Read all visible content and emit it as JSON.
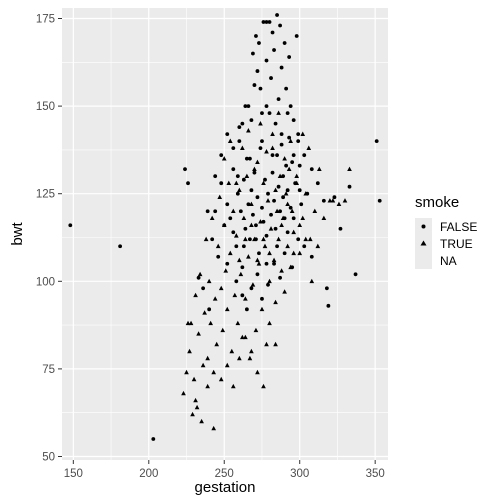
{
  "chart_data": {
    "type": "scatter",
    "title": "",
    "xlabel": "gestation",
    "ylabel": "bwt",
    "xlim": [
      142.5,
      358.5
    ],
    "ylim": [
      49,
      178
    ],
    "x_ticks": [
      150,
      200,
      250,
      300,
      350
    ],
    "y_ticks": [
      50,
      75,
      100,
      125,
      150,
      175
    ],
    "x_tick_labels": [
      "150",
      "200",
      "250",
      "300",
      "350"
    ],
    "y_tick_labels": [
      "50",
      "75",
      "100",
      "125",
      "150",
      "175"
    ],
    "grid": true,
    "panel_background": "#ebebeb",
    "grid_color": "#ffffff",
    "point_color": "#000000",
    "legend": {
      "title": "smoke",
      "position": "right",
      "entries": [
        {
          "label": "FALSE",
          "shape": "circle"
        },
        {
          "label": "TRUE",
          "shape": "triangle"
        },
        {
          "label": "NA",
          "shape": "none"
        }
      ]
    },
    "series": [
      {
        "name": "FALSE",
        "shape": "circle",
        "points": [
          [
            148,
            116
          ],
          [
            181,
            110
          ],
          [
            203,
            55
          ],
          [
            224,
            132
          ],
          [
            226,
            128
          ],
          [
            233,
            101
          ],
          [
            236,
            98
          ],
          [
            239,
            120
          ],
          [
            240,
            92
          ],
          [
            242,
            112
          ],
          [
            244,
            120
          ],
          [
            246,
            107
          ],
          [
            248,
            128
          ],
          [
            250,
            116
          ],
          [
            252,
            105
          ],
          [
            254,
            118
          ],
          [
            256,
            132
          ],
          [
            258,
            110
          ],
          [
            259,
            125
          ],
          [
            260,
            140
          ],
          [
            261,
            120
          ],
          [
            262,
            104
          ],
          [
            263,
            129
          ],
          [
            264,
            115
          ],
          [
            265,
            135
          ],
          [
            266,
            122
          ],
          [
            267,
            112
          ],
          [
            268,
            126
          ],
          [
            269,
            119
          ],
          [
            270,
            131
          ],
          [
            271,
            116
          ],
          [
            272,
            124
          ],
          [
            273,
            108
          ],
          [
            274,
            138
          ],
          [
            275,
            121
          ],
          [
            276,
            117
          ],
          [
            277,
            129
          ],
          [
            278,
            113
          ],
          [
            279,
            125
          ],
          [
            280,
            148
          ],
          [
            281,
            119
          ],
          [
            282,
            131
          ],
          [
            283,
            123
          ],
          [
            284,
            115
          ],
          [
            285,
            136
          ],
          [
            286,
            127
          ],
          [
            287,
            120
          ],
          [
            288,
            139
          ],
          [
            289,
            124
          ],
          [
            290,
            118
          ],
          [
            291,
            133
          ],
          [
            292,
            126
          ],
          [
            293,
            141
          ],
          [
            294,
            121
          ],
          [
            295,
            134
          ],
          [
            297,
            128
          ],
          [
            299,
            140
          ],
          [
            301,
            122
          ],
          [
            303,
            136
          ],
          [
            305,
            125
          ],
          [
            308,
            132
          ],
          [
            312,
            128
          ],
          [
            316,
            123
          ],
          [
            318,
            98
          ],
          [
            319,
            93
          ],
          [
            323,
            124
          ],
          [
            327,
            115
          ],
          [
            333,
            127
          ],
          [
            337,
            102
          ],
          [
            351,
            140
          ],
          [
            353,
            123
          ],
          [
            262,
            145
          ],
          [
            266,
            150
          ],
          [
            270,
            156
          ],
          [
            272,
            160
          ],
          [
            275,
            148
          ],
          [
            278,
            163
          ],
          [
            281,
            158
          ],
          [
            283,
            166
          ],
          [
            286,
            152
          ],
          [
            288,
            161
          ],
          [
            291,
            155
          ],
          [
            294,
            150
          ],
          [
            296,
            146
          ],
          [
            299,
            142
          ],
          [
            269,
            165
          ],
          [
            271,
            170
          ],
          [
            273,
            168
          ],
          [
            276,
            174
          ],
          [
            278,
            174
          ],
          [
            280,
            174
          ],
          [
            282,
            171
          ],
          [
            285,
            176
          ],
          [
            287,
            173
          ],
          [
            290,
            168
          ],
          [
            293,
            164
          ],
          [
            298,
            170
          ],
          [
            258,
            100
          ],
          [
            262,
            96
          ],
          [
            265,
            92
          ],
          [
            268,
            98
          ],
          [
            272,
            102
          ],
          [
            275,
            95
          ],
          [
            279,
            99
          ],
          [
            283,
            105
          ],
          [
            287,
            101
          ],
          [
            290,
            108
          ],
          [
            295,
            104
          ],
          [
            299,
            112
          ],
          [
            303,
            110
          ],
          [
            308,
            107
          ],
          [
            244,
            130
          ],
          [
            248,
            136
          ],
          [
            252,
            142
          ],
          [
            256,
            138
          ],
          [
            260,
            144
          ],
          [
            264,
            150
          ],
          [
            268,
            146
          ],
          [
            274,
            155
          ],
          [
            278,
            150
          ],
          [
            284,
            145
          ],
          [
            288,
            142
          ],
          [
            292,
            148
          ],
          [
            296,
            136
          ],
          [
            300,
            133
          ],
          [
            252,
            122
          ],
          [
            256,
            114
          ],
          [
            259,
            130
          ],
          [
            263,
            110
          ],
          [
            267,
            135
          ],
          [
            271,
            112
          ],
          [
            275,
            140
          ],
          [
            278,
            105
          ],
          [
            282,
            136
          ],
          [
            285,
            110
          ],
          [
            289,
            130
          ],
          [
            292,
            114
          ],
          [
            296,
            118
          ],
          [
            300,
            126
          ]
        ]
      },
      {
        "name": "TRUE",
        "shape": "triangle",
        "points": [
          [
            223,
            68
          ],
          [
            225,
            74
          ],
          [
            227,
            80
          ],
          [
            228,
            88
          ],
          [
            230,
            72
          ],
          [
            231,
            96
          ],
          [
            232,
            64
          ],
          [
            233,
            85
          ],
          [
            234,
            102
          ],
          [
            236,
            76
          ],
          [
            237,
            91
          ],
          [
            238,
            112
          ],
          [
            239,
            70
          ],
          [
            240,
            100
          ],
          [
            241,
            88
          ],
          [
            242,
            118
          ],
          [
            243,
            58
          ],
          [
            244,
            95
          ],
          [
            245,
            82
          ],
          [
            246,
            110
          ],
          [
            247,
            124
          ],
          [
            248,
            98
          ],
          [
            249,
            86
          ],
          [
            250,
            116
          ],
          [
            251,
            103
          ],
          [
            252,
            92
          ],
          [
            253,
            128
          ],
          [
            254,
            108
          ],
          [
            255,
            80
          ],
          [
            256,
            120
          ],
          [
            257,
            96
          ],
          [
            258,
            113
          ],
          [
            259,
            88
          ],
          [
            260,
            126
          ],
          [
            261,
            102
          ],
          [
            262,
            84
          ],
          [
            263,
            118
          ],
          [
            264,
            95
          ],
          [
            265,
            130
          ],
          [
            266,
            107
          ],
          [
            267,
            78
          ],
          [
            268,
            122
          ],
          [
            269,
            99
          ],
          [
            270,
            112
          ],
          [
            271,
            86
          ],
          [
            272,
            134
          ],
          [
            273,
            105
          ],
          [
            274,
            117
          ],
          [
            275,
            92
          ],
          [
            276,
            128
          ],
          [
            277,
            110
          ],
          [
            278,
            82
          ],
          [
            279,
            123
          ],
          [
            280,
            100
          ],
          [
            281,
            115
          ],
          [
            282,
            138
          ],
          [
            283,
            106
          ],
          [
            284,
            94
          ],
          [
            285,
            120
          ],
          [
            286,
            112
          ],
          [
            287,
            130
          ],
          [
            288,
            103
          ],
          [
            289,
            118
          ],
          [
            290,
            97
          ],
          [
            291,
            125
          ],
          [
            292,
            110
          ],
          [
            293,
            132
          ],
          [
            294,
            104
          ],
          [
            295,
            120
          ],
          [
            296,
            114
          ],
          [
            298,
            128
          ],
          [
            300,
            108
          ],
          [
            302,
            118
          ],
          [
            304,
            125
          ],
          [
            307,
            112
          ],
          [
            310,
            120
          ],
          [
            313,
            132
          ],
          [
            316,
            118
          ],
          [
            320,
            123
          ],
          [
            322,
            123
          ],
          [
            326,
            122
          ],
          [
            330,
            123
          ],
          [
            333,
            132
          ],
          [
            226,
            88
          ],
          [
            229,
            62
          ],
          [
            231,
            66
          ],
          [
            235,
            60
          ],
          [
            239,
            78
          ],
          [
            243,
            74
          ],
          [
            248,
            72
          ],
          [
            252,
            76
          ],
          [
            256,
            70
          ],
          [
            260,
            78
          ],
          [
            264,
            84
          ],
          [
            268,
            80
          ],
          [
            272,
            74
          ],
          [
            276,
            70
          ],
          [
            280,
            88
          ],
          [
            284,
            82
          ],
          [
            250,
            135
          ],
          [
            254,
            140
          ],
          [
            258,
            128
          ],
          [
            262,
            138
          ],
          [
            266,
            143
          ],
          [
            270,
            132
          ],
          [
            274,
            145
          ],
          [
            278,
            137
          ],
          [
            282,
            142
          ],
          [
            286,
            148
          ],
          [
            290,
            135
          ],
          [
            294,
            140
          ],
          [
            298,
            130
          ],
          [
            302,
            142
          ],
          [
            306,
            138
          ],
          [
            260,
            106
          ],
          [
            264,
            112
          ],
          [
            268,
            116
          ],
          [
            272,
            106
          ],
          [
            276,
            112
          ],
          [
            280,
            108
          ],
          [
            284,
            126
          ],
          [
            288,
            116
          ],
          [
            292,
            122
          ],
          [
            296,
            108
          ],
          [
            300,
            116
          ],
          [
            304,
            112
          ],
          [
            308,
            100
          ],
          [
            312,
            110
          ]
        ]
      }
    ]
  }
}
